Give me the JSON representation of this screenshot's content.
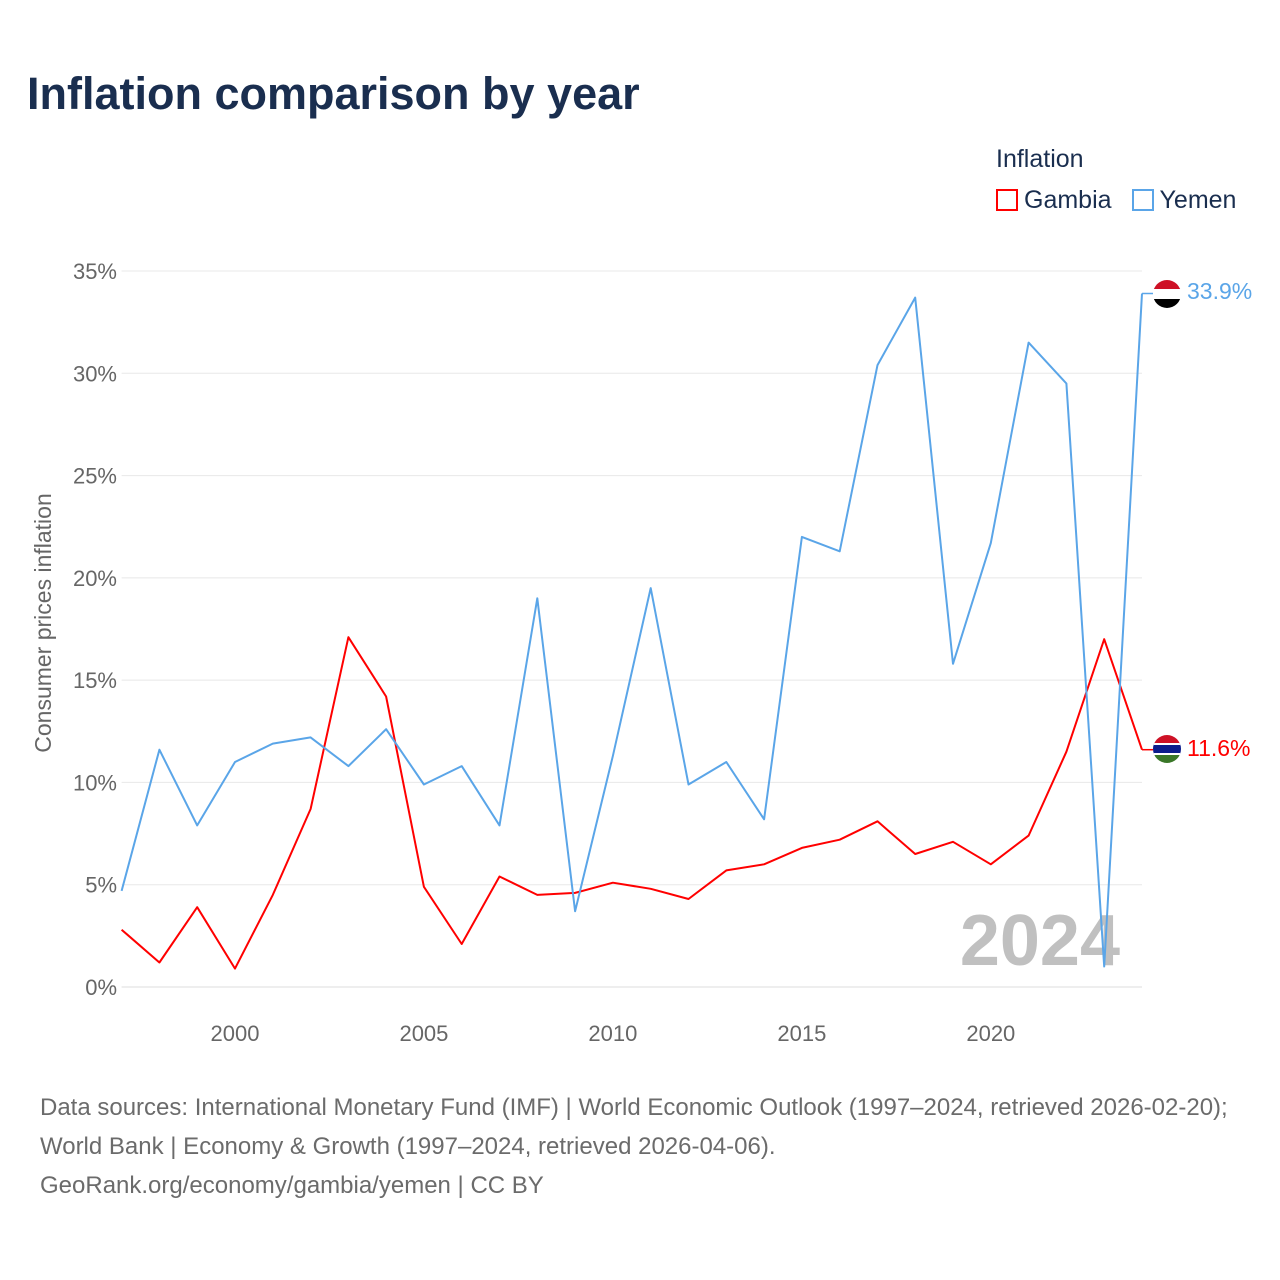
{
  "chart_data": {
    "type": "line",
    "title": "Inflation comparison by year",
    "ylabel": "Consumer prices inflation",
    "xlabel": "",
    "ylim": [
      0,
      35
    ],
    "xlim": [
      1997,
      2024
    ],
    "yticks": [
      0,
      5,
      10,
      15,
      20,
      25,
      30,
      35
    ],
    "ytick_labels": [
      "0%",
      "5%",
      "10%",
      "15%",
      "20%",
      "25%",
      "30%",
      "35%"
    ],
    "xticks": [
      2000,
      2005,
      2010,
      2015,
      2020
    ],
    "xtick_labels": [
      "2000",
      "2005",
      "2010",
      "2015",
      "2020"
    ],
    "grid": true,
    "legend_title": "Inflation",
    "legend_position": "top-right",
    "watermark_year": "2024",
    "x": [
      1997,
      1998,
      1999,
      2000,
      2001,
      2002,
      2003,
      2004,
      2005,
      2006,
      2007,
      2008,
      2009,
      2010,
      2011,
      2012,
      2013,
      2014,
      2015,
      2016,
      2017,
      2018,
      2019,
      2020,
      2021,
      2022,
      2023,
      2024
    ],
    "series": [
      {
        "name": "Gambia",
        "color": "#ff0000",
        "end_label": "11.6%",
        "flag": "gambia-flag",
        "values": [
          2.8,
          1.2,
          3.9,
          0.9,
          4.5,
          8.7,
          17.1,
          14.2,
          4.9,
          2.1,
          5.4,
          4.5,
          4.6,
          5.1,
          4.8,
          4.3,
          5.7,
          6.0,
          6.8,
          7.2,
          8.1,
          6.5,
          7.1,
          6.0,
          7.4,
          11.5,
          17.0,
          11.6
        ]
      },
      {
        "name": "Yemen",
        "color": "#5aa5e8",
        "end_label": "33.9%",
        "flag": "yemen-flag",
        "values": [
          4.7,
          11.6,
          7.9,
          11.0,
          11.9,
          12.2,
          10.8,
          12.6,
          9.9,
          10.8,
          7.9,
          19.0,
          3.7,
          11.3,
          19.5,
          9.9,
          11.0,
          8.2,
          22.0,
          21.3,
          30.4,
          33.7,
          15.8,
          21.7,
          31.5,
          29.5,
          1.0,
          33.9
        ]
      }
    ]
  },
  "footer": {
    "sources": "Data sources: International Monetary Fund (IMF) | World Economic Outlook (1997–2024, retrieved 2026-02-20); World Bank | Economy & Growth (1997–2024, retrieved 2026-04-06).",
    "credit": "GeoRank.org/economy/gambia/yemen | CC BY"
  }
}
